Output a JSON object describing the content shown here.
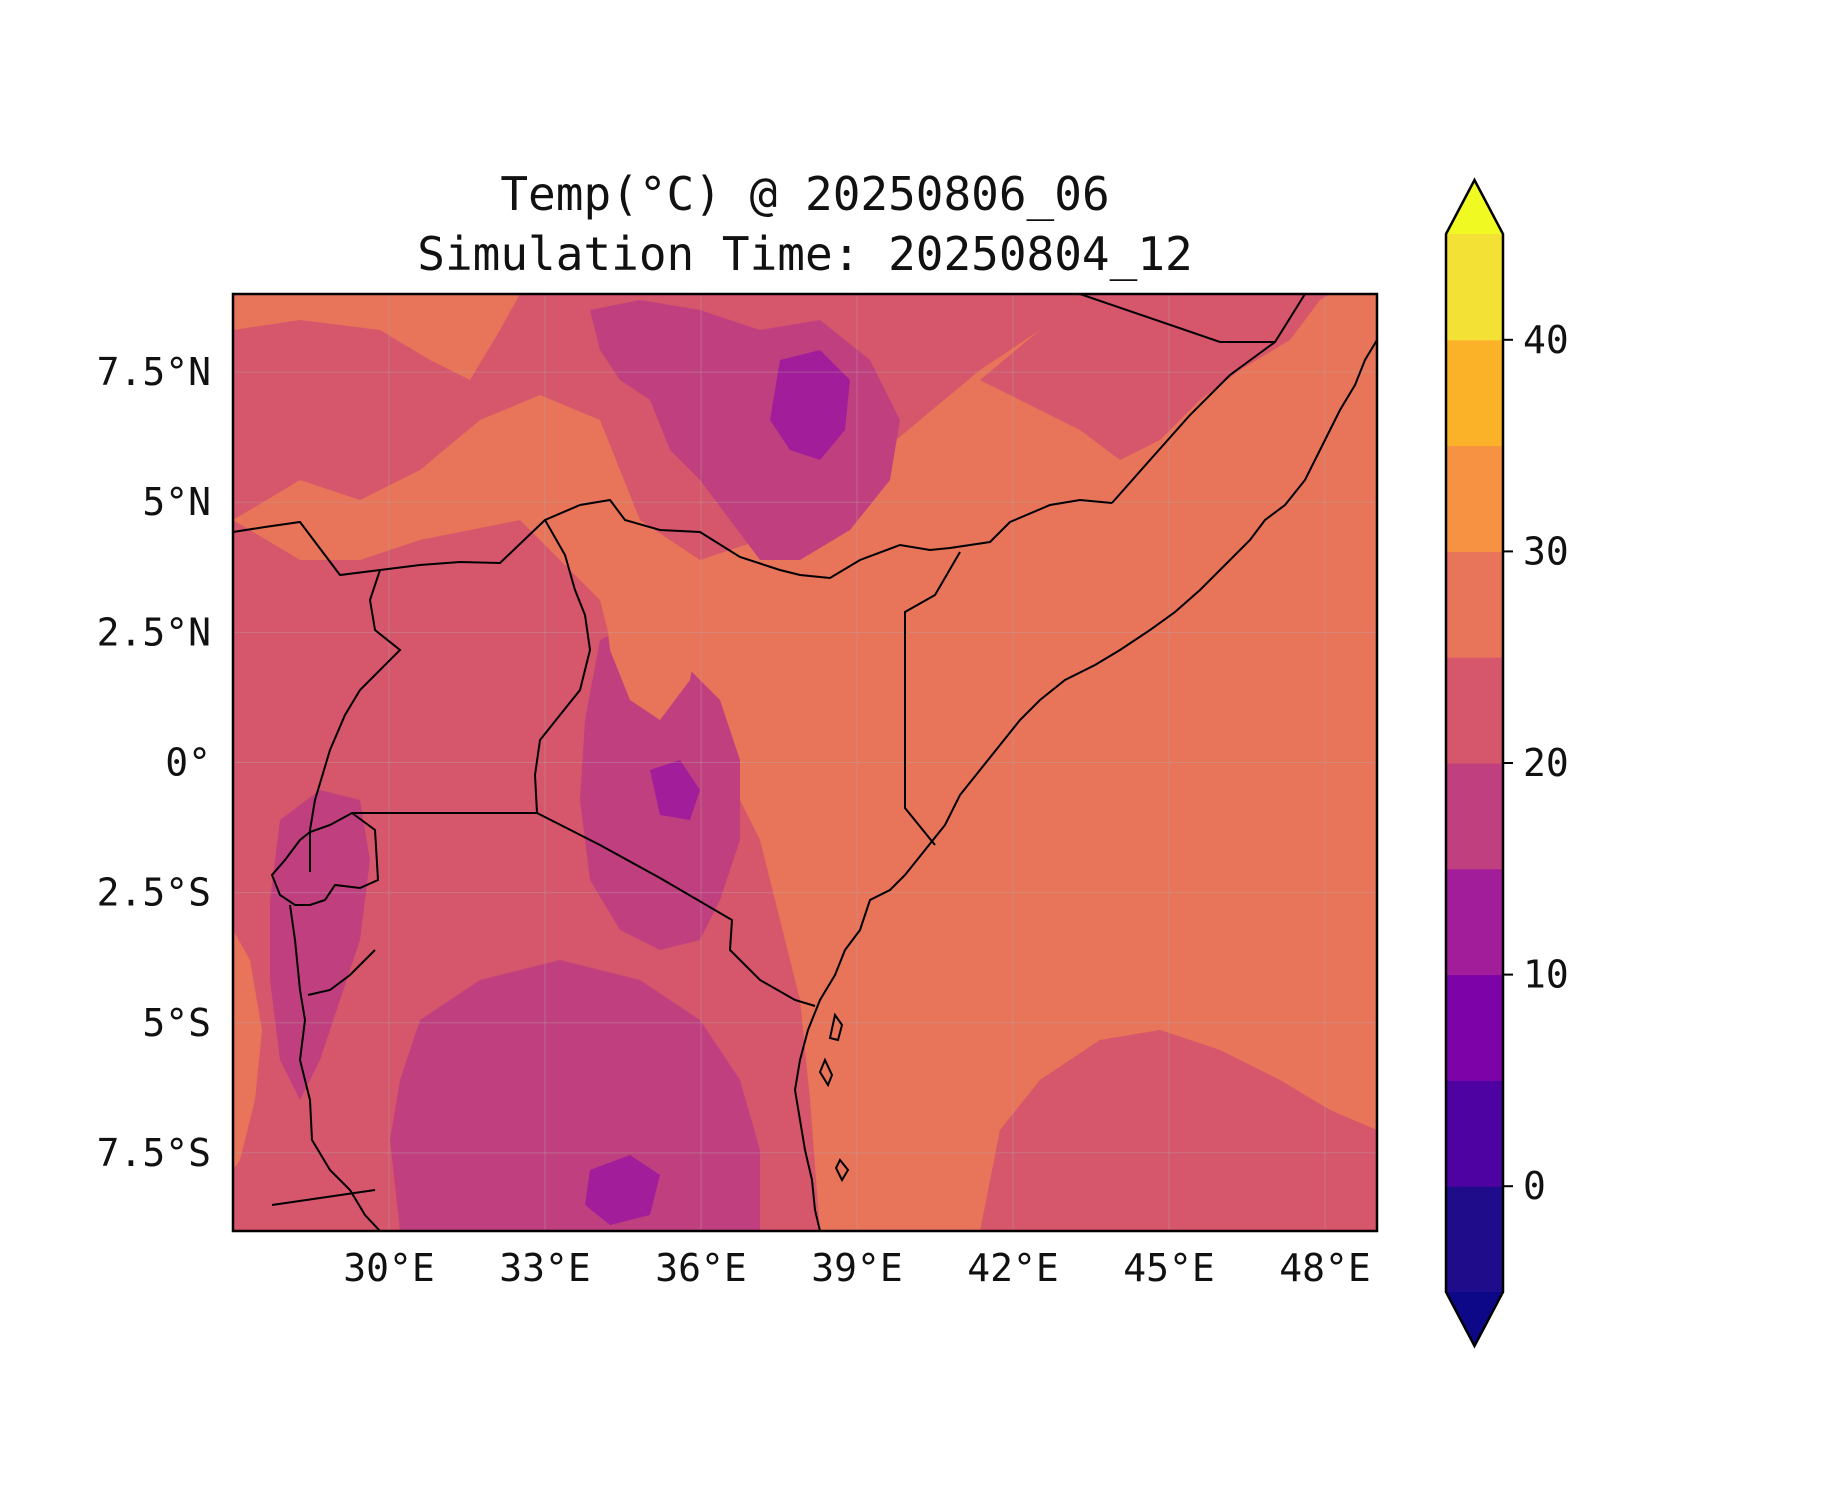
{
  "title": {
    "line1": "Temp(°C) @ 20250806_06",
    "line2": "Simulation Time: 20250804_12"
  },
  "map": {
    "lon_range": [
      27,
      49
    ],
    "lat_range": [
      -9,
      9
    ],
    "x_ticks": [
      {
        "value": 30,
        "label": "30°E"
      },
      {
        "value": 33,
        "label": "33°E"
      },
      {
        "value": 36,
        "label": "36°E"
      },
      {
        "value": 39,
        "label": "39°E"
      },
      {
        "value": 42,
        "label": "42°E"
      },
      {
        "value": 45,
        "label": "45°E"
      },
      {
        "value": 48,
        "label": "48°E"
      }
    ],
    "y_ticks": [
      {
        "value": 7.5,
        "label": "7.5°N"
      },
      {
        "value": 5,
        "label": "5°N"
      },
      {
        "value": 2.5,
        "label": "2.5°N"
      },
      {
        "value": 0,
        "label": "0°"
      },
      {
        "value": -2.5,
        "label": "2.5°S"
      },
      {
        "value": -5,
        "label": "5°S"
      },
      {
        "value": -7.5,
        "label": "7.5°S"
      }
    ],
    "grid": true,
    "background_color": "#e87459"
  },
  "colorbar": {
    "levels": [
      -5,
      0,
      5,
      10,
      15,
      20,
      25,
      30,
      35,
      40,
      45
    ],
    "colors": [
      "#1f0c8a",
      "#4e02a2",
      "#7d03a8",
      "#a21d9a",
      "#c0407f",
      "#d6566b",
      "#e87459",
      "#f79242",
      "#fcb228",
      "#f3e136"
    ],
    "under_color": "#0d0887",
    "over_color": "#f0f921",
    "ticks": [
      {
        "value": 0,
        "label": "0"
      },
      {
        "value": 10,
        "label": "10"
      },
      {
        "value": 20,
        "label": "20"
      },
      {
        "value": 30,
        "label": "30"
      },
      {
        "value": 40,
        "label": "40"
      }
    ],
    "extend": "both"
  }
}
